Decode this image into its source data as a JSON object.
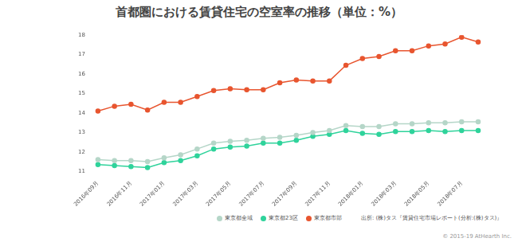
{
  "chart_data": {
    "type": "line",
    "title": "首都圏における賃貸住宅の空室率の推移（単位：%）",
    "categories": [
      "2016年09月",
      null,
      "2016年11月",
      null,
      "2017年01月",
      null,
      "2017年03月",
      null,
      "2017年05月",
      null,
      "2017年07月",
      null,
      "2017年09月",
      null,
      "2017年11月",
      null,
      "2018年01月",
      null,
      "2018年03月",
      null,
      "2018年05月",
      null,
      "2018年07月",
      null
    ],
    "series": [
      {
        "name": "東京都全域",
        "color": "#b5d6c8",
        "marker": "circle",
        "values": [
          11.6,
          11.55,
          11.55,
          11.5,
          11.7,
          11.85,
          12.15,
          12.45,
          12.55,
          12.6,
          12.7,
          12.75,
          12.85,
          13.0,
          13.1,
          13.35,
          13.3,
          13.3,
          13.45,
          13.45,
          13.5,
          13.5,
          13.55,
          13.55
        ]
      },
      {
        "name": "東京都23区",
        "color": "#2fd39b",
        "marker": "circle",
        "values": [
          11.35,
          11.3,
          11.25,
          11.2,
          11.45,
          11.55,
          11.8,
          12.15,
          12.25,
          12.3,
          12.45,
          12.45,
          12.6,
          12.8,
          12.9,
          13.1,
          12.95,
          12.9,
          13.05,
          13.05,
          13.1,
          13.05,
          13.1,
          13.1
        ]
      },
      {
        "name": "東京都市部",
        "color": "#e8552f",
        "marker": "circle",
        "values": [
          14.1,
          14.35,
          14.45,
          14.15,
          14.55,
          14.55,
          14.85,
          15.15,
          15.25,
          15.2,
          15.2,
          15.55,
          15.7,
          15.65,
          15.65,
          16.45,
          16.8,
          16.9,
          17.2,
          17.2,
          17.45,
          17.55,
          17.9,
          17.65
        ]
      }
    ],
    "ylim": [
      11,
      18
    ],
    "yticks": [
      11,
      12,
      13,
      14,
      15,
      16,
      17,
      18
    ],
    "grid": false,
    "legend": "bottom",
    "annotations": [
      "出所: (株)タス『賃貸住宅市場レポート(分析:(株)タス)』",
      "© 2015-19 AtHearth Inc."
    ]
  }
}
